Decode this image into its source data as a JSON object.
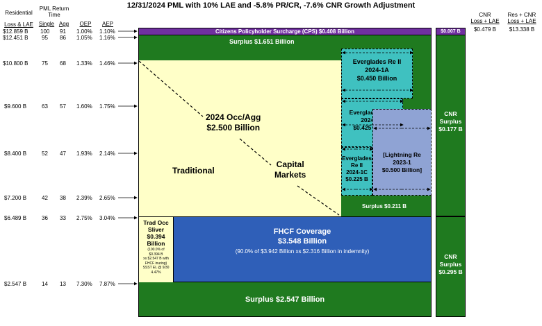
{
  "title": "12/31/2024 PML with 10% LAE and -5.8% PR/CR, -7.6% CNR Growth Adjustment",
  "left_headers": {
    "residential_line1": "Residential",
    "residential_line2": "Loss & LAE",
    "pml_return_time_line1": "PML Return",
    "pml_return_time_line2": "Time",
    "single": "Single",
    "agg": "Agg",
    "oep": "OEP",
    "aep": "AEP"
  },
  "rows": [
    {
      "loss": "$12.859 B",
      "single": "100",
      "agg": "91",
      "oep": "1.00%",
      "aep": "1.10%"
    },
    {
      "loss": "$12.451 B",
      "single": "95",
      "agg": "86",
      "oep": "1.05%",
      "aep": "1.16%"
    },
    {
      "loss": "$10.800 B",
      "single": "75",
      "agg": "68",
      "oep": "1.33%",
      "aep": "1.46%"
    },
    {
      "loss": "$9.600 B",
      "single": "63",
      "agg": "57",
      "oep": "1.60%",
      "aep": "1.75%"
    },
    {
      "loss": "$8.400 B",
      "single": "52",
      "agg": "47",
      "oep": "1.93%",
      "aep": "2.14%"
    },
    {
      "loss": "$7.200 B",
      "single": "42",
      "agg": "38",
      "oep": "2.39%",
      "aep": "2.65%"
    },
    {
      "loss": "$6.489 B",
      "single": "36",
      "agg": "33",
      "oep": "2.75%",
      "aep": "3.04%"
    },
    {
      "loss": "$2.547 B",
      "single": "14",
      "agg": "13",
      "oep": "7.30%",
      "aep": "7.87%"
    }
  ],
  "right_headers": {
    "cnr_line1": "CNR",
    "cnr_line2": "Loss + LAE",
    "rescnr_line1": "Res + CNR",
    "rescnr_line2": "Loss + LAE",
    "cnr_value": "$0.479 B",
    "rescnr_value": "$13.338 B"
  },
  "blocks": {
    "cps": "Citizens Policyholder Surcharge (CPS) $0.408 Billion",
    "surplus_top": "Surplus $1.651 Billion",
    "traditional": "Traditional",
    "occ_agg_line1": "2024 Occ/Agg",
    "occ_agg_line2": "$2.500 Billion",
    "capital_markets_line1": "Capital",
    "capital_markets_line2": "Markets",
    "ev1a": [
      "Everglades Re II",
      "2024-1A",
      "$0.450 Billion"
    ],
    "ev1b": [
      "Everglades Re II",
      "2024-1B",
      "$0.425 Billion"
    ],
    "ev1c": [
      "Everglades",
      "Re II",
      "2024-1C",
      "$0.225 B"
    ],
    "lightning": [
      "[Lightning Re",
      "2023-1",
      "$0.500 Billion]"
    ],
    "surplus_mid": "Surplus $0.211 B",
    "trad_sliver": [
      "Trad Occ",
      "Sliver",
      "$0.394",
      "Billion"
    ],
    "trad_sliver_note": [
      "(100.0% of",
      "$0.394 B",
      "xs $2.547 B with",
      "FHCF inuring)",
      "SSST EL @ 9/30",
      "4.47%"
    ],
    "fhcf_title": "FHCF Coverage",
    "fhcf_amount": "$3.548 Billion",
    "fhcf_note": "(90.0% of $3.942 Billion xs $2.316 Billion in indemnity)",
    "surplus_bottom": "Surplus $2.547 Billion",
    "cnr_top": "$0.007 B",
    "cnr_surplus_1": [
      "CNR",
      "Surplus",
      "$0.177 B"
    ],
    "cnr_surplus_2": [
      "CNR",
      "Surplus",
      "$0.295 B"
    ]
  },
  "colors": {
    "cps": "#7030a0",
    "surplus": "#1f7a1f",
    "traditional": "#ffffc8",
    "everglades": "#3fc1c0",
    "lightning": "#8fa3d4",
    "fhcf": "#2f5fb8"
  }
}
